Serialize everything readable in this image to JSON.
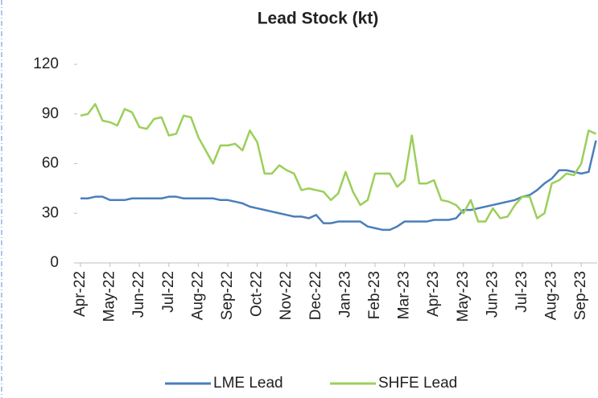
{
  "chart_data": {
    "type": "line",
    "title": "Lead Stock (kt)",
    "categories": [
      "Apr-22",
      null,
      null,
      null,
      "May-22",
      null,
      null,
      null,
      "Jun-22",
      null,
      null,
      null,
      "Jul-22",
      null,
      null,
      null,
      "Aug-22",
      null,
      null,
      null,
      "Sep-22",
      null,
      null,
      null,
      "Oct-22",
      null,
      null,
      null,
      "Nov-22",
      null,
      null,
      null,
      "Dec-22",
      null,
      null,
      null,
      "Jan-23",
      null,
      null,
      null,
      "Feb-23",
      null,
      null,
      null,
      "Mar-23",
      null,
      null,
      null,
      "Apr-23",
      null,
      null,
      null,
      "May-23",
      null,
      null,
      null,
      "Jun-23",
      null,
      null,
      null,
      "Jul-23",
      null,
      null,
      null,
      "Aug-23",
      null,
      null,
      null,
      "Sep-23",
      null,
      null
    ],
    "series": [
      {
        "name": "LME Lead",
        "color": "#4a7ebb",
        "values": [
          39,
          39,
          40,
          40,
          38,
          38,
          38,
          39,
          39,
          39,
          39,
          39,
          40,
          40,
          39,
          39,
          39,
          39,
          39,
          38,
          38,
          37,
          36,
          34,
          33,
          32,
          31,
          30,
          29,
          28,
          28,
          27,
          29,
          24,
          24,
          25,
          25,
          25,
          25,
          22,
          21,
          20,
          20,
          22,
          25,
          25,
          25,
          25,
          26,
          26,
          26,
          27,
          32,
          32,
          33,
          34,
          35,
          36,
          37,
          38,
          40,
          41,
          44,
          48,
          51,
          56,
          56,
          55,
          54,
          55,
          74
        ]
      },
      {
        "name": "SHFE Lead",
        "color": "#9bcf5a",
        "values": [
          89,
          90,
          96,
          86,
          85,
          83,
          93,
          91,
          82,
          81,
          87,
          88,
          77,
          78,
          89,
          88,
          76,
          68,
          60,
          71,
          71,
          72,
          68,
          80,
          73,
          54,
          54,
          59,
          56,
          54,
          44,
          45,
          44,
          43,
          38,
          42,
          55,
          43,
          35,
          38,
          54,
          54,
          54,
          46,
          50,
          77,
          48,
          48,
          50,
          38,
          37,
          35,
          30,
          38,
          25,
          25,
          33,
          27,
          28,
          35,
          40,
          40,
          27,
          30,
          48,
          50,
          54,
          53,
          60,
          80,
          78
        ]
      }
    ],
    "ylim": [
      0,
      120
    ],
    "yticks": [
      0,
      30,
      60,
      90,
      120
    ],
    "legend": "bottom"
  }
}
